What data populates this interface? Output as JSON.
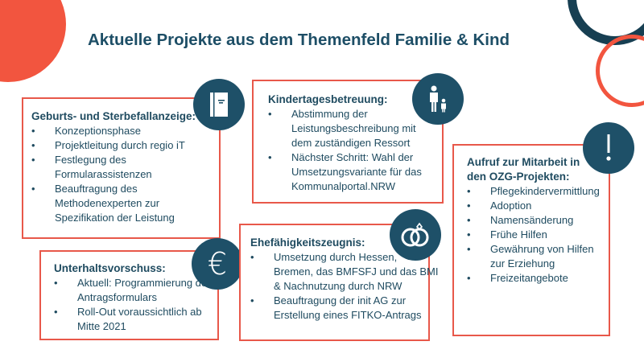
{
  "title": "Aktuelle Projekte aus dem Themenfeld Familie & Kind",
  "colors": {
    "accent": "#e8584a",
    "primary": "#1e5068"
  },
  "cards": [
    {
      "heading": "Geburts- und Sterbefallanzeige:",
      "icon": "book-icon",
      "items": [
        "Konzeptionsphase",
        "Projektleitung durch regio iT",
        "Festlegung des Formularassistenzen",
        "Beauftragung des Methodenexperten zur Spezifikation der Leistung"
      ]
    },
    {
      "heading": "Kindertagesbetreuung:",
      "icon": "parent-child-icon",
      "items": [
        "Abstimmung der Leistungsbeschreibung mit dem zuständigen Ressort",
        "Nächster Schritt: Wahl der Umsetzungsvariante für das Kommunalportal.NRW"
      ]
    },
    {
      "heading": "Aufruf zur Mitarbeit in den OZG-Projekten:",
      "icon": "exclamation-icon",
      "items": [
        "Pflegekindervermittlung",
        "Adoption",
        "Namensänderung",
        "Frühe Hilfen",
        "Gewährung von Hilfen zur Erziehung",
        "Freizeitangebote"
      ]
    },
    {
      "heading": "Unterhaltsvorschuss:",
      "icon": "euro-icon",
      "items": [
        "Aktuell: Programmierung des Antragsformulars",
        "Roll-Out voraussichtlich ab Mitte 2021"
      ]
    },
    {
      "heading": "Ehefähigkeitszeugnis:",
      "icon": "wedding-rings-icon",
      "items": [
        "Umsetzung durch Hessen, Bremen, das BMFSFJ und das BMI & Nachnutzung durch NRW",
        "Beauftragung der init AG zur Erstellung eines FITKO-Antrags"
      ]
    }
  ]
}
